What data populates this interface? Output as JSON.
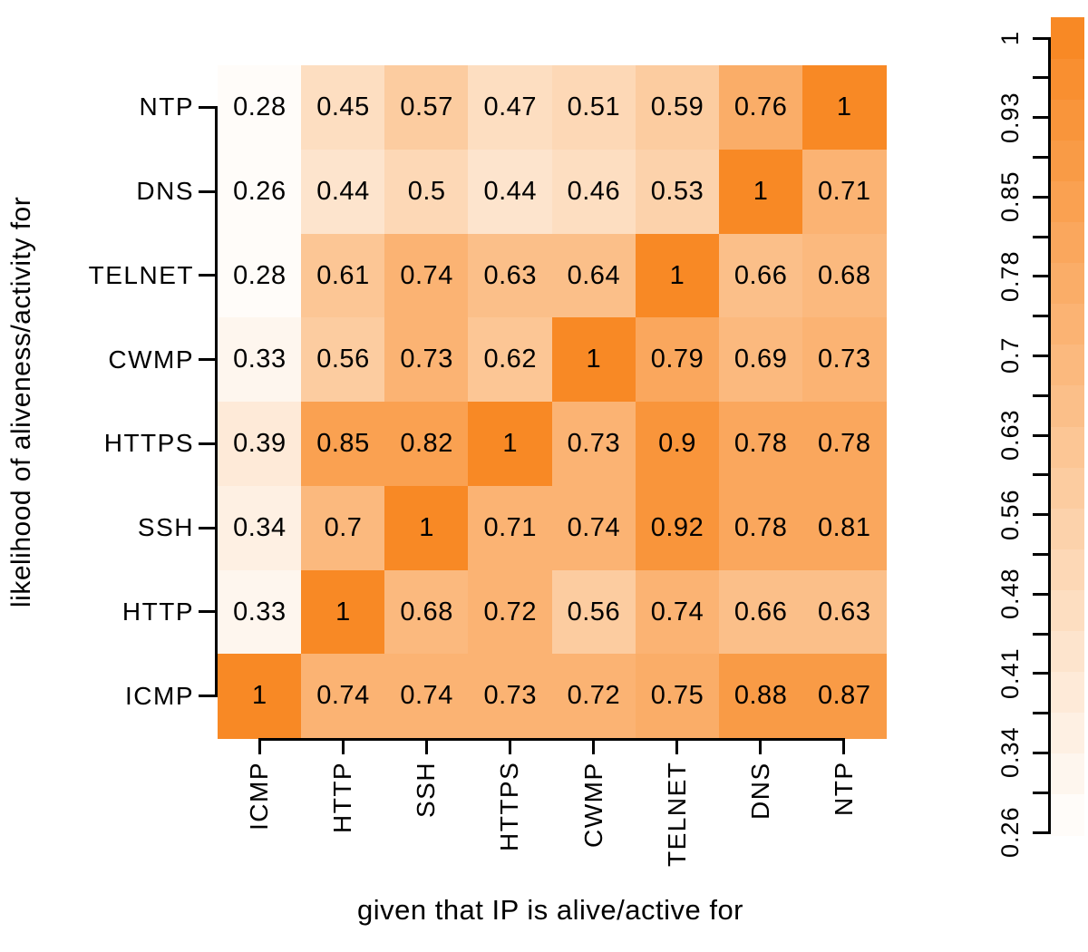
{
  "figure": {
    "x_axis_title": "given that IP is alive/active for",
    "y_axis_title": "likelihood of aliveness/activity for"
  },
  "chart_data": {
    "type": "heatmap",
    "title": "",
    "xlabel": "given that IP is alive/active for",
    "ylabel": "likelihood of aliveness/activity for",
    "x_categories": [
      "ICMP",
      "HTTP",
      "SSH",
      "HTTPS",
      "CWMP",
      "TELNET",
      "DNS",
      "NTP"
    ],
    "y_categories_top_to_bottom": [
      "NTP",
      "DNS",
      "TELNET",
      "CWMP",
      "HTTPS",
      "SSH",
      "HTTP",
      "ICMP"
    ],
    "rows": [
      {
        "label": "NTP",
        "values": [
          0.28,
          0.45,
          0.57,
          0.47,
          0.51,
          0.59,
          0.76,
          1
        ]
      },
      {
        "label": "DNS",
        "values": [
          0.26,
          0.44,
          0.5,
          0.44,
          0.46,
          0.53,
          1,
          0.71
        ]
      },
      {
        "label": "TELNET",
        "values": [
          0.28,
          0.61,
          0.74,
          0.63,
          0.64,
          1,
          0.66,
          0.68
        ]
      },
      {
        "label": "CWMP",
        "values": [
          0.33,
          0.56,
          0.73,
          0.62,
          1,
          0.79,
          0.69,
          0.73
        ]
      },
      {
        "label": "HTTPS",
        "values": [
          0.39,
          0.85,
          0.82,
          1,
          0.73,
          0.9,
          0.78,
          0.78
        ]
      },
      {
        "label": "SSH",
        "values": [
          0.34,
          0.7,
          1,
          0.71,
          0.74,
          0.92,
          0.78,
          0.81
        ]
      },
      {
        "label": "HTTP",
        "values": [
          0.33,
          1,
          0.68,
          0.72,
          0.56,
          0.74,
          0.66,
          0.63
        ]
      },
      {
        "label": "ICMP",
        "values": [
          1,
          0.74,
          0.74,
          0.73,
          0.72,
          0.75,
          0.88,
          0.87
        ]
      }
    ],
    "value_range": [
      0.26,
      1
    ],
    "n_color_levels": 20,
    "colorbar_tick_labels": [
      "1",
      "0.93",
      "0.85",
      "0.78",
      "0.7",
      "0.63",
      "0.56",
      "0.48",
      "0.41",
      "0.34",
      "0.26"
    ],
    "colorbar_minor_ticks_between_labels": 1,
    "legend_position": "right",
    "grid": false,
    "colors": {
      "low": "#FFFFFF",
      "high": "#F8861F",
      "text": "#000000",
      "axis": "#000000"
    }
  }
}
